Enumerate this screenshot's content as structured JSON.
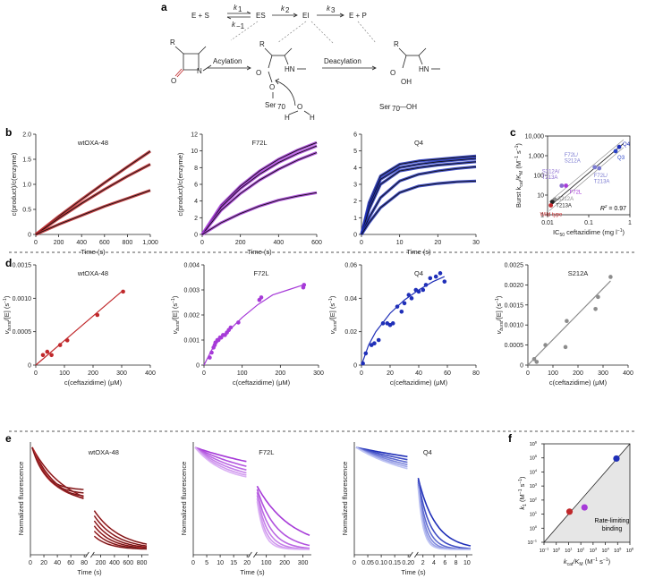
{
  "panels": {
    "a": "a",
    "b": "b",
    "c": "c",
    "d": "d",
    "e": "e",
    "f": "f"
  },
  "scheme": {
    "E_plus_S": "E + S",
    "ES": "ES",
    "EI": "EI",
    "E_plus_P": "E + P",
    "k1": "k",
    "k1_sub": "1",
    "km1": "k",
    "km1_sub": "−1",
    "k2": "k",
    "k2_sub": "2",
    "k3": "k",
    "k3_sub": "3",
    "acylation": "Acylation",
    "deacylation": "Deacylation",
    "R": "R",
    "O": "O",
    "N": "N",
    "HN": "HN",
    "OH": "OH",
    "Ser70": "Ser",
    "Ser70_sub": "70",
    "Ser70_OH": "—OH",
    "H": "H"
  },
  "colors": {
    "wt": "#c0282b",
    "f72l": "#a63ad8",
    "q4": "#1f2fb8",
    "s212a": "#8c8c8c",
    "f72l_label": "#b04fd8",
    "q4_label": "#3040c8",
    "s212a_label": "#9a9a9a",
    "wt_label": "#c0282b",
    "c_label": "#7a7ac8"
  },
  "chart_data": [
    {
      "id": "b1",
      "type": "line",
      "title": "wtOXA-48",
      "xlabel": "Time (s)",
      "ylabel": "c(product)/c(enzyme)",
      "xlim": [
        0,
        1000
      ],
      "ylim": [
        0,
        2.0
      ],
      "xticks": [
        "0",
        "200",
        "400",
        "600",
        "800",
        "1,000"
      ],
      "yticks": [
        "0",
        "0.5",
        "1.0",
        "1.5",
        "2.0"
      ],
      "series": [
        {
          "name": "c1",
          "x": [
            0,
            200,
            400,
            600,
            800,
            1000
          ],
          "y": [
            0,
            0.36,
            0.7,
            1.03,
            1.35,
            1.66
          ]
        },
        {
          "name": "c2",
          "x": [
            0,
            200,
            400,
            600,
            800,
            1000
          ],
          "y": [
            0,
            0.32,
            0.62,
            0.9,
            1.16,
            1.4
          ]
        },
        {
          "name": "c3",
          "x": [
            0,
            200,
            400,
            600,
            800,
            1000
          ],
          "y": [
            0,
            0.2,
            0.38,
            0.56,
            0.72,
            0.88
          ]
        }
      ]
    },
    {
      "id": "b2",
      "type": "line",
      "title": "F72L",
      "xlabel": "Time (s)",
      "ylabel": "c(product)/c(enzyme)",
      "xlim": [
        0,
        600
      ],
      "ylim": [
        0,
        12
      ],
      "xticks": [
        "0",
        "200",
        "400",
        "600"
      ],
      "yticks": [
        "0",
        "2",
        "4",
        "6",
        "8",
        "10",
        "12"
      ],
      "series": [
        {
          "name": "c1",
          "x": [
            0,
            100,
            200,
            300,
            400,
            500,
            600
          ],
          "y": [
            0,
            3.5,
            5.8,
            7.6,
            9.0,
            10.1,
            11.0
          ]
        },
        {
          "name": "c2",
          "x": [
            0,
            100,
            200,
            300,
            400,
            500,
            600
          ],
          "y": [
            0,
            3.3,
            5.5,
            7.2,
            8.6,
            9.7,
            10.6
          ]
        },
        {
          "name": "c3",
          "x": [
            0,
            100,
            200,
            300,
            400,
            500,
            600
          ],
          "y": [
            0,
            2.9,
            4.9,
            6.5,
            7.8,
            8.9,
            9.8
          ]
        },
        {
          "name": "c4",
          "x": [
            0,
            100,
            200,
            300,
            400,
            500,
            600
          ],
          "y": [
            0,
            1.4,
            2.5,
            3.4,
            4.1,
            4.6,
            5.0
          ]
        }
      ]
    },
    {
      "id": "b3",
      "type": "line",
      "title": "Q4",
      "xlabel": "Time (s)",
      "ylabel": "",
      "xlim": [
        0,
        30
      ],
      "ylim": [
        0,
        6
      ],
      "xticks": [
        "0",
        "10",
        "20",
        "30"
      ],
      "yticks": [
        "0",
        "1",
        "2",
        "3",
        "4",
        "5",
        "6"
      ],
      "series": [
        {
          "name": "c1",
          "x": [
            0,
            2,
            5,
            10,
            15,
            20,
            25,
            30
          ],
          "y": [
            0,
            1.9,
            3.5,
            4.2,
            4.4,
            4.5,
            4.6,
            4.7
          ]
        },
        {
          "name": "c2",
          "x": [
            0,
            2,
            5,
            10,
            15,
            20,
            25,
            30
          ],
          "y": [
            0,
            1.7,
            3.3,
            4.0,
            4.2,
            4.35,
            4.45,
            4.55
          ]
        },
        {
          "name": "c3",
          "x": [
            0,
            2,
            5,
            10,
            15,
            20,
            25,
            30
          ],
          "y": [
            0,
            1.5,
            3.0,
            3.8,
            4.0,
            4.15,
            4.25,
            4.35
          ]
        },
        {
          "name": "c4",
          "x": [
            0,
            2,
            5,
            10,
            15,
            20,
            25,
            30
          ],
          "y": [
            0,
            1.0,
            2.2,
            3.2,
            3.6,
            3.8,
            3.95,
            4.05
          ]
        },
        {
          "name": "c5",
          "x": [
            0,
            2,
            5,
            10,
            15,
            20,
            25,
            30
          ],
          "y": [
            0,
            0.7,
            1.6,
            2.5,
            2.9,
            3.05,
            3.15,
            3.2
          ]
        }
      ]
    },
    {
      "id": "c",
      "type": "scatter",
      "xlabel": "IC",
      "xlabel_sub": "50",
      "xlabel_rest": " ceftazidime (mg l",
      "xlabel_sup": "−1",
      "xlabel_end": ")",
      "ylabel": "Burst k",
      "ylabel_sub": "cat",
      "ylabel_mid": "/K",
      "ylabel_sub2": "M",
      "ylabel_rest": " (M",
      "ylabel_sup": "−1",
      "ylabel_mid2": " s",
      "ylabel_sup2": "−1",
      "ylabel_end": ")",
      "xscale": "log",
      "yscale": "log",
      "xlim": [
        0.01,
        1
      ],
      "ylim": [
        1,
        10000
      ],
      "xticks": [
        "0.01",
        "0.1",
        "1"
      ],
      "yticks": [
        "1",
        "10",
        "100",
        "1,000",
        "10,000"
      ],
      "r2": "R",
      "r2_sup": "2",
      "r2_val": " = 0.97",
      "points": [
        {
          "label": "Q4",
          "x": 0.55,
          "y": 2800,
          "color": "#1f2fb8"
        },
        {
          "label": "Q3",
          "x": 0.45,
          "y": 1700,
          "color": "#2a44c8"
        },
        {
          "label": "F72L/ S212A",
          "x": 0.14,
          "y": 260,
          "color": "#7a7ad0"
        },
        {
          "label": "F72L/ T213A",
          "x": 0.18,
          "y": 230,
          "color": "#7a7ad0"
        },
        {
          "label": "S212A/ T213A",
          "x": 0.022,
          "y": 30,
          "color": "#8a6ad0"
        },
        {
          "label": "F72L",
          "x": 0.028,
          "y": 30,
          "color": "#a63ad8"
        },
        {
          "label": "S212A",
          "x": 0.015,
          "y": 6,
          "color": "#8c8c8c"
        },
        {
          "label": "T213A",
          "x": 0.013,
          "y": 4.5,
          "color": "#222222"
        },
        {
          "label": "Wild type",
          "x": 0.012,
          "y": 3,
          "color": "#c0282b"
        }
      ]
    },
    {
      "id": "d1",
      "type": "scatter",
      "title": "wtOXA-48",
      "xlabel": "c(ceftazidime) (μM)",
      "ylabel": "v",
      "ylabel_sub": "burst",
      "ylabel_rest": "/[E] (s",
      "ylabel_sup": "−1",
      "ylabel_end": ")",
      "xlim": [
        0,
        400
      ],
      "ylim": [
        0,
        0.0015
      ],
      "xticks": [
        "0",
        "100",
        "200",
        "300",
        "400"
      ],
      "yticks": [
        "0",
        "0.0005",
        "0.0010",
        "0.0015"
      ],
      "x": [
        25,
        40,
        55,
        85,
        110,
        215,
        305
      ],
      "y": [
        0.00015,
        0.0002,
        0.00015,
        0.0003,
        0.00037,
        0.00075,
        0.0011
      ],
      "fit_x": [
        0,
        305
      ],
      "fit_y": [
        0,
        0.00112
      ]
    },
    {
      "id": "d2",
      "type": "scatter",
      "title": "F72L",
      "xlabel": "c(ceftazidime) (μM)",
      "ylabel": "v",
      "ylabel_sub": "burst",
      "ylabel_rest": "/[E] (s",
      "ylabel_sup": "−1",
      "ylabel_end": ")",
      "xlim": [
        0,
        300
      ],
      "ylim": [
        0,
        0.004
      ],
      "xticks": [
        "0",
        "100",
        "200",
        "300"
      ],
      "yticks": [
        "0",
        "0.001",
        "0.002",
        "0.003",
        "0.004"
      ],
      "x": [
        15,
        20,
        25,
        28,
        30,
        35,
        38,
        42,
        45,
        50,
        55,
        60,
        65,
        70,
        90,
        145,
        150,
        260,
        262
      ],
      "y": [
        0.0003,
        0.0005,
        0.0007,
        0.0008,
        0.0009,
        0.001,
        0.001,
        0.0011,
        0.0011,
        0.0012,
        0.0012,
        0.0013,
        0.0014,
        0.0015,
        0.0017,
        0.0026,
        0.0027,
        0.0031,
        0.0032
      ],
      "fit_x": [
        0,
        20,
        40,
        60,
        80,
        100,
        140,
        180,
        220,
        260
      ],
      "fit_y": [
        0,
        0.0006,
        0.001,
        0.0013,
        0.0016,
        0.0019,
        0.0024,
        0.0028,
        0.003,
        0.0032
      ]
    },
    {
      "id": "d3",
      "type": "scatter",
      "title": "Q4",
      "xlabel": "c(ceftazidime) (μM)",
      "ylabel": "v",
      "ylabel_sub": "burst",
      "ylabel_rest": "/[E] (s",
      "ylabel_sup": "−1",
      "ylabel_end": ")",
      "xlim": [
        0,
        80
      ],
      "ylim": [
        0,
        0.06
      ],
      "xticks": [
        "0",
        "20",
        "40",
        "60",
        "80"
      ],
      "yticks": [
        "0",
        "0.02",
        "0.04",
        "0.06"
      ],
      "x": [
        1,
        3,
        7,
        9,
        12,
        15,
        18,
        20,
        22,
        25,
        28,
        30,
        33,
        35,
        38,
        40,
        43,
        45,
        48,
        52,
        55,
        58
      ],
      "y": [
        0.001,
        0.007,
        0.012,
        0.013,
        0.015,
        0.025,
        0.025,
        0.024,
        0.025,
        0.035,
        0.032,
        0.037,
        0.042,
        0.04,
        0.045,
        0.044,
        0.045,
        0.048,
        0.052,
        0.053,
        0.055,
        0.05
      ],
      "fit_x": [
        0,
        5,
        10,
        20,
        30,
        40,
        50,
        58
      ],
      "fit_y": [
        0,
        0.012,
        0.02,
        0.031,
        0.039,
        0.045,
        0.05,
        0.053
      ]
    },
    {
      "id": "d4",
      "type": "scatter",
      "title": "S212A",
      "xlabel": "c(ceftazidime) (μM)",
      "ylabel": "v",
      "ylabel_sub": "burst",
      "ylabel_rest": "/[E] (s",
      "ylabel_sup": "−1",
      "ylabel_end": ")",
      "xlim": [
        0,
        400
      ],
      "ylim": [
        0,
        0.0025
      ],
      "xticks": [
        "0",
        "100",
        "200",
        "300",
        "400"
      ],
      "yticks": [
        "0",
        "0.0005",
        "0.0010",
        "0.0015",
        "0.0020",
        "0.0025"
      ],
      "x": [
        25,
        35,
        70,
        150,
        155,
        270,
        280,
        330
      ],
      "y": [
        0.00015,
        8e-05,
        0.0005,
        0.00045,
        0.0011,
        0.0014,
        0.0017,
        0.0022
      ],
      "fit_x": [
        0,
        330
      ],
      "fit_y": [
        0,
        0.0021
      ]
    },
    {
      "id": "e1",
      "type": "line",
      "title": "wtOXA-48",
      "xlabel": "Time (s)",
      "ylabel": "Normalized fluorescence",
      "broken": true,
      "seg1_ticks": [
        "0",
        "20",
        "40",
        "60",
        "80"
      ],
      "seg2_ticks": [
        "200",
        "400",
        "600",
        "800"
      ]
    },
    {
      "id": "e2",
      "type": "line",
      "title": "F72L",
      "xlabel": "Time (s)",
      "ylabel": "Normalized fluorescence",
      "broken": true,
      "seg1_ticks": [
        "0",
        "5",
        "10",
        "15",
        "20"
      ],
      "seg2_ticks": [
        "100",
        "200",
        "300"
      ]
    },
    {
      "id": "e3",
      "type": "line",
      "title": "Q4",
      "xlabel": "Time (s)",
      "ylabel": "Normalized fluorescence",
      "broken": true,
      "seg1_ticks": [
        "0",
        "0.05",
        "0.10",
        "0.15",
        "0.20"
      ],
      "seg2_ticks": [
        "2",
        "4",
        "6",
        "8",
        "10"
      ]
    },
    {
      "id": "f",
      "type": "scatter",
      "xscale": "log",
      "yscale": "log",
      "xlim": [
        0.1,
        1000000
      ],
      "ylim": [
        0.1,
        1000000
      ],
      "xlabel": "k",
      "xlabel_sub": "cat",
      "xlabel_mid": "/K",
      "xlabel_sub2": "M",
      "xlabel_rest": " (M",
      "xlabel_sup": "−1",
      "xlabel_mid2": " s",
      "xlabel_sup2": "−1",
      "xlabel_end": ")",
      "ylabel": "k",
      "ylabel_sub": "1",
      "ylabel_rest": " (M",
      "ylabel_sup": "−1",
      "ylabel_mid2": " s",
      "ylabel_sup2": "−1",
      "ylabel_end": ")",
      "xticks": [
        "10",
        "10",
        "10",
        "10",
        "10",
        "10",
        "10",
        "10"
      ],
      "xtick_exp": [
        "−1",
        "0",
        "1",
        "2",
        "3",
        "4",
        "5",
        "6"
      ],
      "yticks": [
        "10",
        "10",
        "10",
        "10",
        "10",
        "10",
        "10",
        "10"
      ],
      "ytick_exp": [
        "−1",
        "0",
        "1",
        "2",
        "3",
        "4",
        "5",
        "6"
      ],
      "region_label_1": "Rate-limiting",
      "region_label_2": "binding",
      "points": [
        {
          "label": "wtOXA-48",
          "x": 12,
          "y": 15,
          "color": "#c0282b"
        },
        {
          "label": "F72L",
          "x": 200,
          "y": 30,
          "color": "#a63ad8"
        },
        {
          "label": "Q4",
          "x": 80000,
          "y": 90000,
          "color": "#1f2fb8"
        }
      ]
    }
  ]
}
